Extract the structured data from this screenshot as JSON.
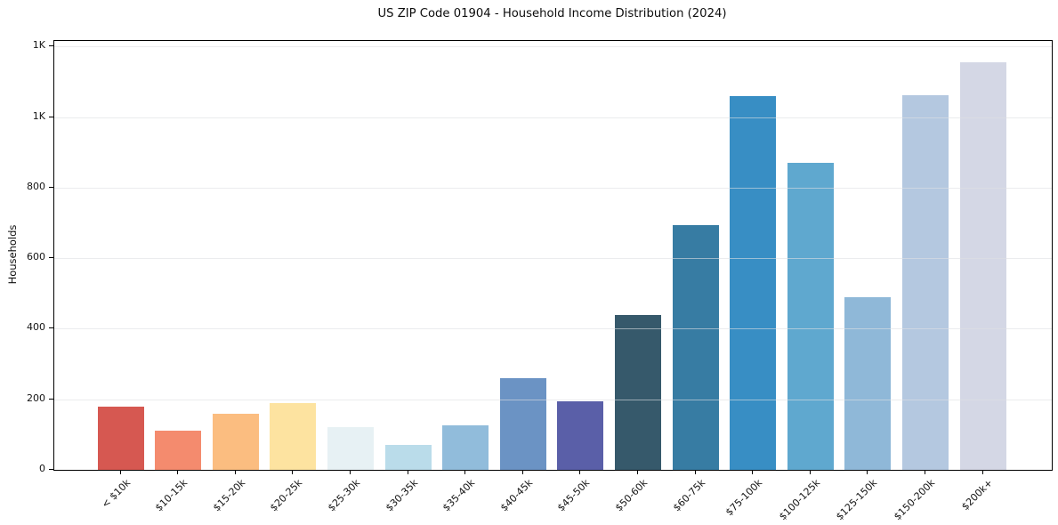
{
  "chart_data": {
    "type": "bar",
    "title": "US ZIP Code 01904 - Household Income Distribution (2024)",
    "xlabel": "",
    "ylabel": "Households",
    "categories": [
      "< $10k",
      "$10-15k",
      "$15-20k",
      "$20-25k",
      "$25-30k",
      "$30-35k",
      "$35-40k",
      "$40-45k",
      "$45-50k",
      "$50-60k",
      "$60-75k",
      "$75-100k",
      "$100-125k",
      "$125-150k",
      "$150-200k",
      "$200k+"
    ],
    "values": [
      180,
      110,
      160,
      190,
      120,
      70,
      125,
      260,
      195,
      440,
      695,
      1060,
      870,
      490,
      1063,
      1155
    ],
    "bar_colors": [
      "#d65851",
      "#f48b6e",
      "#fbbd80",
      "#fde3a0",
      "#e7f1f4",
      "#badcea",
      "#91bcdb",
      "#6b93c4",
      "#5a5fa8",
      "#36596b",
      "#377ca3",
      "#388ec4",
      "#5fa8cf",
      "#8fb8d8",
      "#b4c8e0",
      "#d4d7e5"
    ],
    "ylim": [
      0,
      1216
    ],
    "yticks": [
      {
        "value": 0,
        "label": "0"
      },
      {
        "value": 200,
        "label": "200"
      },
      {
        "value": 400,
        "label": "400"
      },
      {
        "value": 600,
        "label": "600"
      },
      {
        "value": 800,
        "label": "800"
      },
      {
        "value": 1000,
        "label": "1K"
      },
      {
        "value": 1200,
        "label": "1K"
      }
    ],
    "grid": "horizontal",
    "legend": "none"
  },
  "colors": {
    "background": "#ffffff",
    "spine": "#000000",
    "gridline": "#ebedee",
    "text": "#141414"
  }
}
